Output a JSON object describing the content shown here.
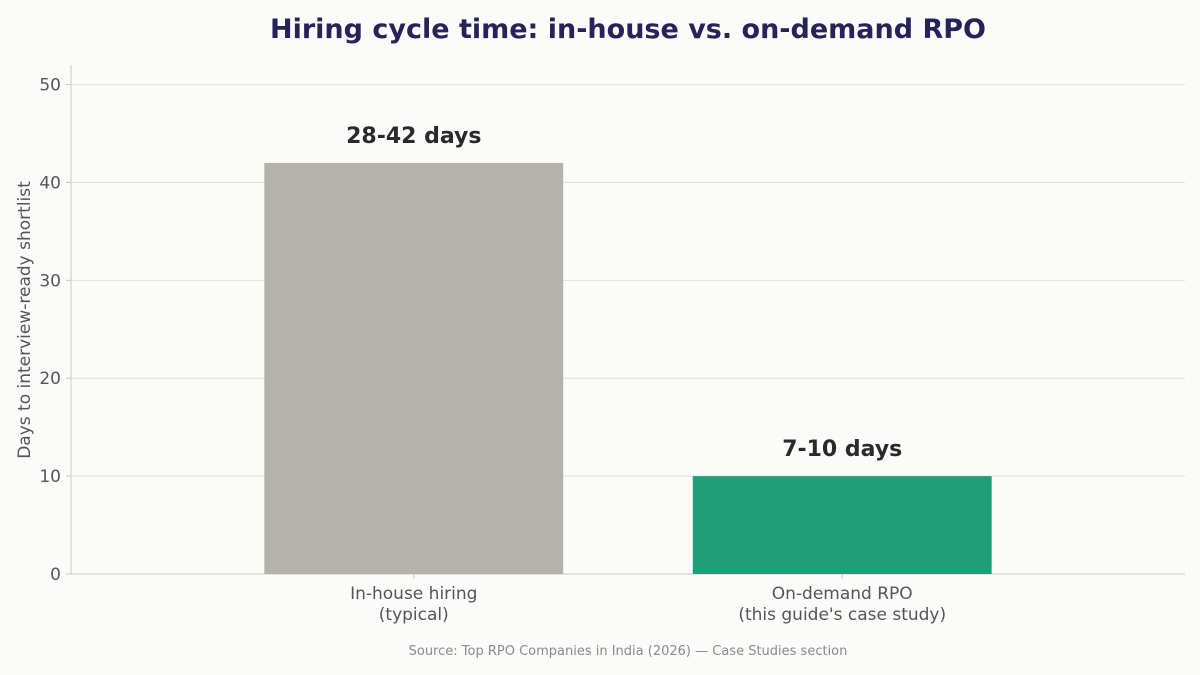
{
  "chart_data": {
    "type": "bar",
    "title": "Hiring cycle time: in-house vs. on-demand RPO",
    "xlabel": "",
    "ylabel": "Days to interview-ready shortlist",
    "ylim": [
      0,
      52
    ],
    "yticks": [
      0,
      10,
      20,
      30,
      40,
      50
    ],
    "grid": true,
    "categories": [
      [
        "In-house hiring",
        "(typical)"
      ],
      [
        "On-demand RPO",
        "(this guide's case study)"
      ]
    ],
    "values": [
      42,
      10
    ],
    "data_labels": [
      "28-42 days",
      "7-10 days"
    ],
    "colors": [
      "#b4b2aa",
      "#1f9e77"
    ],
    "source": "Source: Top RPO Companies in India (2026) — Case Studies section"
  }
}
